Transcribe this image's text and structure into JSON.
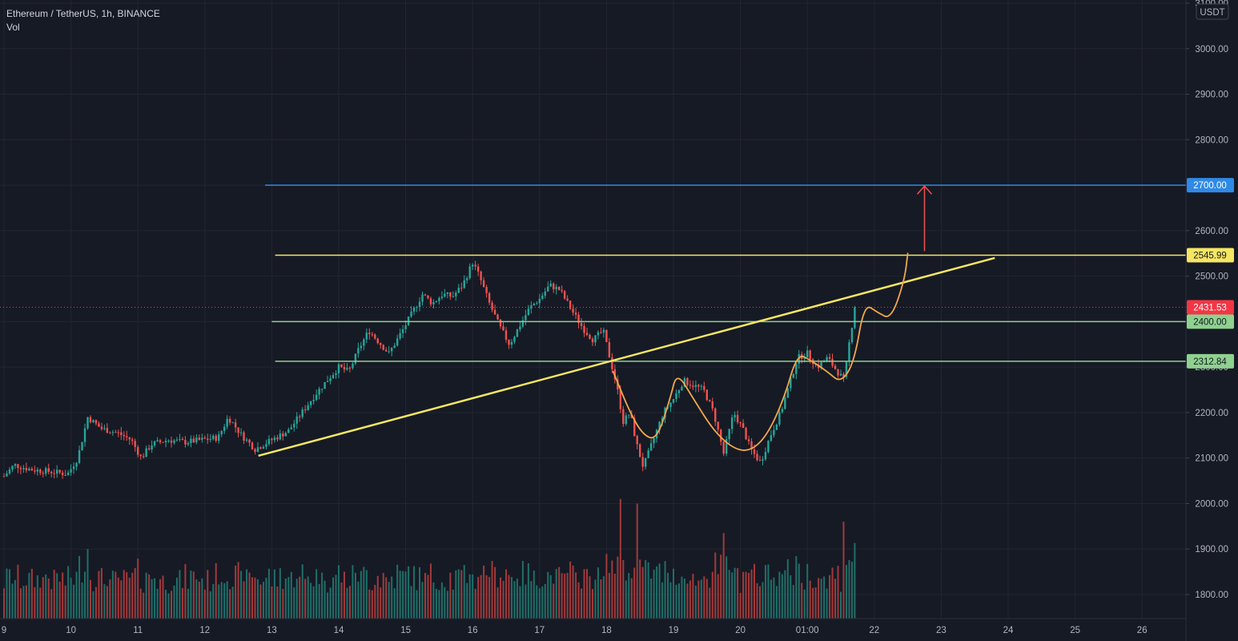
{
  "header": {
    "symbol_line": "Ethereum / TetherUS, 1h, BINANCE",
    "indicator": "Vol"
  },
  "colors": {
    "background": "#161a25",
    "grid": "#232632",
    "up": "#26a69a",
    "down": "#ef5350",
    "up_volume": "#1f6f69",
    "down_volume": "#a13a3a",
    "target_line": "#2f8ae6",
    "resistance_line": "#f5e663",
    "support_line": "#8fd18f",
    "trendline": "#f5e663",
    "path": "#f2a74b",
    "arrow": "#ef5350",
    "current_price": "#f23645"
  },
  "chart_data": {
    "type": "candlestick",
    "symbol": "Ethereum / TetherUS",
    "interval": "1h",
    "exchange": "BINANCE",
    "currency": "USDT",
    "price_axis_unit": "USDT",
    "y_range": [
      1750,
      3100
    ],
    "y_ticks": [
      1800,
      1900,
      2000,
      2100,
      2200,
      2300,
      2400,
      2500,
      2600,
      2700,
      2800,
      2900,
      3000,
      3100
    ],
    "x_ticks": [
      "9",
      "10",
      "11",
      "12",
      "13",
      "14",
      "15",
      "16",
      "17",
      "18",
      "19",
      "20",
      "01:00",
      "22",
      "23",
      "24",
      "25",
      "26"
    ],
    "x_day_range": [
      9,
      26.7
    ],
    "grid": true,
    "price_path": [
      [
        9.0,
        2060
      ],
      [
        9.15,
        2085
      ],
      [
        9.4,
        2075
      ],
      [
        9.7,
        2070
      ],
      [
        9.95,
        2065
      ],
      [
        10.1,
        2100
      ],
      [
        10.25,
        2190
      ],
      [
        10.45,
        2165
      ],
      [
        10.7,
        2155
      ],
      [
        10.9,
        2140
      ],
      [
        11.05,
        2100
      ],
      [
        11.2,
        2130
      ],
      [
        11.45,
        2140
      ],
      [
        11.7,
        2135
      ],
      [
        11.95,
        2140
      ],
      [
        12.2,
        2145
      ],
      [
        12.35,
        2190
      ],
      [
        12.55,
        2150
      ],
      [
        12.75,
        2120
      ],
      [
        13.0,
        2140
      ],
      [
        13.25,
        2160
      ],
      [
        13.45,
        2200
      ],
      [
        13.65,
        2240
      ],
      [
        13.85,
        2275
      ],
      [
        14.0,
        2300
      ],
      [
        14.15,
        2290
      ],
      [
        14.3,
        2340
      ],
      [
        14.45,
        2380
      ],
      [
        14.6,
        2355
      ],
      [
        14.75,
        2330
      ],
      [
        14.95,
        2380
      ],
      [
        15.1,
        2420
      ],
      [
        15.25,
        2460
      ],
      [
        15.4,
        2440
      ],
      [
        15.55,
        2460
      ],
      [
        15.7,
        2455
      ],
      [
        15.85,
        2480
      ],
      [
        16.0,
        2530
      ],
      [
        16.1,
        2500
      ],
      [
        16.25,
        2440
      ],
      [
        16.4,
        2390
      ],
      [
        16.55,
        2350
      ],
      [
        16.7,
        2390
      ],
      [
        16.85,
        2430
      ],
      [
        17.0,
        2450
      ],
      [
        17.15,
        2480
      ],
      [
        17.3,
        2470
      ],
      [
        17.5,
        2420
      ],
      [
        17.65,
        2385
      ],
      [
        17.8,
        2360
      ],
      [
        17.95,
        2380
      ],
      [
        18.05,
        2320
      ],
      [
        18.15,
        2260
      ],
      [
        18.25,
        2180
      ],
      [
        18.35,
        2200
      ],
      [
        18.45,
        2130
      ],
      [
        18.55,
        2080
      ],
      [
        18.7,
        2140
      ],
      [
        18.85,
        2200
      ],
      [
        19.0,
        2230
      ],
      [
        19.15,
        2270
      ],
      [
        19.3,
        2260
      ],
      [
        19.45,
        2250
      ],
      [
        19.6,
        2200
      ],
      [
        19.75,
        2110
      ],
      [
        19.9,
        2200
      ],
      [
        20.05,
        2160
      ],
      [
        20.15,
        2120
      ],
      [
        20.3,
        2090
      ],
      [
        20.45,
        2150
      ],
      [
        20.6,
        2200
      ],
      [
        20.75,
        2270
      ],
      [
        20.85,
        2320
      ],
      [
        21.0,
        2330
      ],
      [
        21.15,
        2300
      ],
      [
        21.3,
        2320
      ],
      [
        21.45,
        2290
      ],
      [
        21.55,
        2270
      ],
      [
        21.65,
        2380
      ],
      [
        21.72,
        2431.53
      ]
    ],
    "volume_spikes": [
      [
        18.2,
        2010
      ],
      [
        18.45,
        2000
      ],
      [
        21.55,
        1960
      ],
      [
        10.25,
        1900
      ],
      [
        19.75,
        1935
      ]
    ],
    "current_price": 2431.53,
    "levels": [
      {
        "price": 2700.0,
        "label": "2700.00",
        "kind": "target",
        "from_day": 12.9
      },
      {
        "price": 2545.99,
        "label": "2545.99",
        "kind": "resistance",
        "from_day": 13.05
      },
      {
        "price": 2400.0,
        "label": "2400.00",
        "kind": "support",
        "from_day": 13.0
      },
      {
        "price": 2312.84,
        "label": "2312.84",
        "kind": "support",
        "from_day": 13.05
      }
    ],
    "trendline": [
      [
        12.8,
        2105
      ],
      [
        23.8,
        2540
      ]
    ],
    "projection_path": [
      [
        18.1,
        2290
      ],
      [
        18.35,
        2200
      ],
      [
        18.55,
        2150
      ],
      [
        18.75,
        2140
      ],
      [
        18.95,
        2230
      ],
      [
        19.05,
        2290
      ],
      [
        19.3,
        2230
      ],
      [
        19.6,
        2160
      ],
      [
        19.9,
        2120
      ],
      [
        20.15,
        2115
      ],
      [
        20.4,
        2150
      ],
      [
        20.65,
        2230
      ],
      [
        20.85,
        2330
      ],
      [
        21.05,
        2315
      ],
      [
        21.3,
        2290
      ],
      [
        21.5,
        2265
      ],
      [
        21.7,
        2310
      ],
      [
        21.85,
        2440
      ],
      [
        22.05,
        2420
      ],
      [
        22.25,
        2405
      ],
      [
        22.45,
        2490
      ],
      [
        22.5,
        2550
      ]
    ],
    "arrow": {
      "day": 22.75,
      "from_price": 2555,
      "to_price": 2698
    }
  }
}
